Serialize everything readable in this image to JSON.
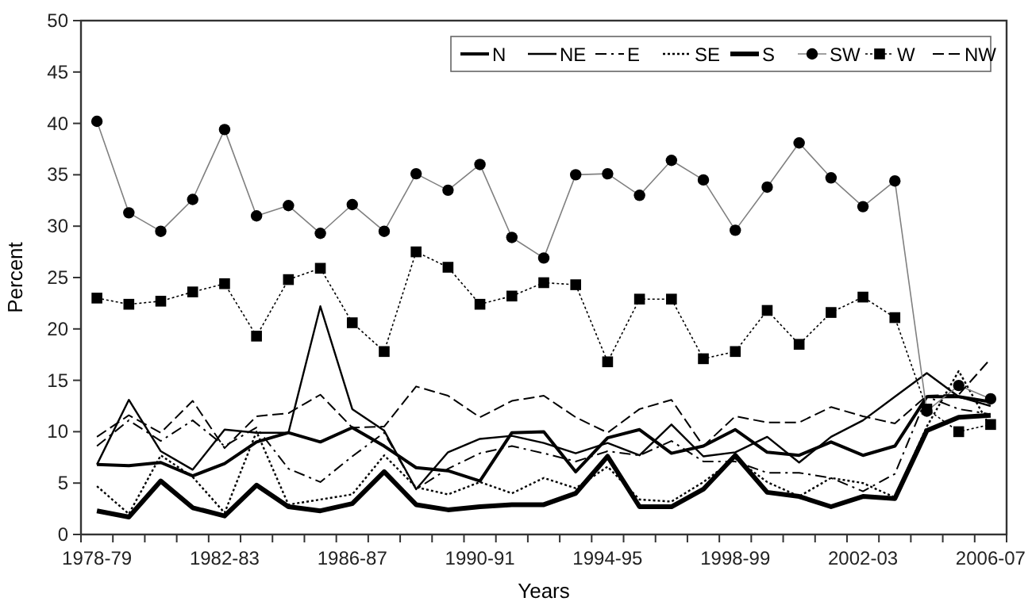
{
  "chart_data": {
    "type": "line",
    "xlabel": "Years",
    "ylabel": "Percent",
    "categories": [
      "1978-79",
      null,
      null,
      null,
      "1982-83",
      null,
      null,
      null,
      "1986-87",
      null,
      null,
      null,
      "1990-91",
      null,
      null,
      null,
      "1994-95",
      null,
      null,
      null,
      "1998-99",
      null,
      null,
      null,
      "2002-03",
      null,
      null,
      null,
      "2006-07"
    ],
    "ylim": [
      0,
      50
    ],
    "yticks": [
      0,
      5,
      10,
      15,
      20,
      25,
      30,
      35,
      40,
      45,
      50
    ],
    "grid": false,
    "legend": "top right",
    "series": [
      {
        "name": "N",
        "color": "#000000",
        "line_style": "solid",
        "marker": "none",
        "values": [
          6.8,
          6.7,
          7.0,
          5.7,
          6.9,
          9.0,
          9.9,
          9.0,
          10.4,
          8.6,
          6.5,
          6.2,
          5.2,
          9.9,
          10.0,
          6.1,
          9.4,
          10.2,
          7.9,
          8.6,
          10.2,
          8.0,
          7.7,
          9.0,
          7.7,
          8.6,
          13.4,
          13.4,
          12.9
        ]
      },
      {
        "name": "NE",
        "color": "#000000",
        "line_style": "solid",
        "marker": "none",
        "values": [
          6.8,
          13.1,
          8.1,
          6.3,
          10.2,
          9.9,
          9.9,
          22.2,
          12.2,
          10.1,
          4.4,
          8.0,
          9.3,
          9.6,
          8.9,
          7.9,
          8.9,
          7.7,
          10.7,
          7.6,
          8.0,
          9.5,
          7.0,
          9.5,
          11.1,
          13.4,
          15.7,
          13.4,
          12.5
        ]
      },
      {
        "name": "E",
        "color": "#000000",
        "line_style": "dashdot",
        "marker": "none",
        "values": [
          8.6,
          11.1,
          9.1,
          11.1,
          8.6,
          10.4,
          6.4,
          5.1,
          7.6,
          9.9,
          4.4,
          6.4,
          7.9,
          8.6,
          7.9,
          7.1,
          8.1,
          7.7,
          9.1,
          7.1,
          7.1,
          6.0,
          6.0,
          5.5,
          4.2,
          5.9,
          13.4,
          12.2,
          11.7
        ]
      },
      {
        "name": "SE",
        "color": "#000000",
        "line_style": "dotted",
        "marker": "none",
        "values": [
          4.7,
          2.0,
          7.7,
          5.6,
          2.1,
          10.0,
          2.9,
          3.4,
          3.9,
          7.7,
          4.6,
          3.9,
          5.1,
          4.0,
          5.5,
          4.5,
          6.6,
          3.4,
          3.2,
          5.1,
          7.4,
          5.1,
          3.7,
          5.5,
          5.0,
          3.6,
          10.5,
          15.9,
          10.4
        ]
      },
      {
        "name": "S",
        "color": "#000000",
        "line_style": "solid",
        "marker": "none",
        "values": [
          2.3,
          1.7,
          5.2,
          2.6,
          1.8,
          4.8,
          2.7,
          2.3,
          3.0,
          6.1,
          2.9,
          2.4,
          2.7,
          2.9,
          2.9,
          4.0,
          7.6,
          2.7,
          2.7,
          4.4,
          7.7,
          4.1,
          3.7,
          2.7,
          3.7,
          3.5,
          10.1,
          11.4,
          11.6
        ]
      },
      {
        "name": "SW",
        "color": "#808080",
        "line_style": "solid",
        "marker": "circle",
        "values": [
          40.2,
          31.3,
          29.5,
          32.6,
          39.4,
          31,
          32,
          29.3,
          32.1,
          29.5,
          35.1,
          33.5,
          36,
          28.9,
          26.9,
          35,
          35.1,
          33,
          36.4,
          34.5,
          29.6,
          33.8,
          38.1,
          34.7,
          31.9,
          34.4,
          12,
          14.5,
          13.2
        ]
      },
      {
        "name": "W",
        "color": "#000000",
        "line_style": "dotted",
        "marker": "square",
        "values": [
          23,
          22.4,
          22.7,
          23.6,
          24.4,
          19.3,
          24.8,
          25.9,
          20.6,
          17.8,
          27.5,
          26,
          22.4,
          23.2,
          24.5,
          24.3,
          16.8,
          22.9,
          22.9,
          17.1,
          17.8,
          21.8,
          18.5,
          21.6,
          23.1,
          21.1,
          12.2,
          10,
          10.7
        ]
      },
      {
        "name": "NW",
        "color": "#000000",
        "line_style": "dashed",
        "marker": "none",
        "values": [
          9.5,
          11.6,
          9.9,
          13.0,
          8.4,
          11.5,
          11.8,
          13.6,
          10.4,
          10.5,
          14.4,
          13.5,
          11.4,
          13.0,
          13.5,
          11.4,
          9.9,
          12.2,
          13.1,
          8.6,
          11.5,
          10.9,
          10.9,
          12.4,
          11.5,
          10.8,
          13.5,
          13.6,
          17.1
        ]
      }
    ]
  }
}
